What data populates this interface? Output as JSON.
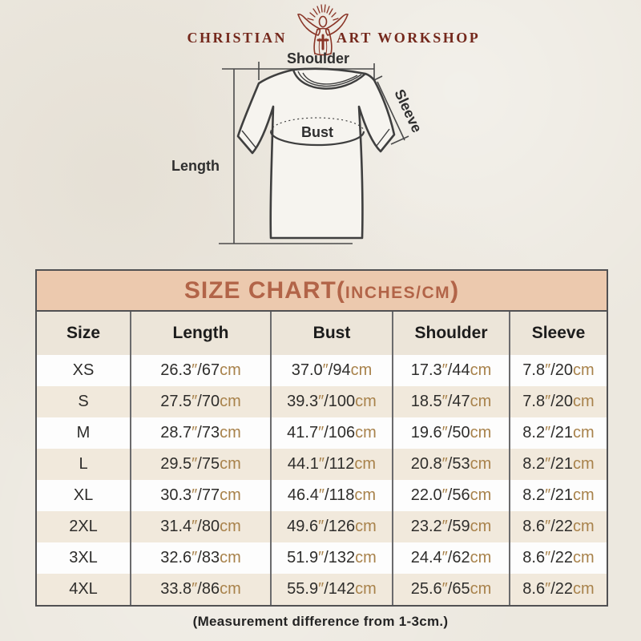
{
  "logo": {
    "left": "CHRISTIAN",
    "right": "ART WORKSHOP"
  },
  "diagram": {
    "shoulder": "Shoulder",
    "sleeve": "Sleeve",
    "bust": "Bust",
    "length": "Length"
  },
  "size_chart": {
    "title_main": "SIZE CHART(",
    "title_unit": "INCHES/CM",
    "title_close": ")",
    "units": {
      "inch_mark": "″",
      "separator": "/",
      "cm_label": "cm"
    },
    "columns": [
      "Size",
      "Length",
      "Bust",
      "Shoulder",
      "Sleeve"
    ],
    "rows": [
      {
        "size": "XS",
        "length": [
          "26.3",
          "67"
        ],
        "bust": [
          "37.0",
          "94"
        ],
        "shoulder": [
          "17.3",
          "44"
        ],
        "sleeve": [
          "7.8",
          "20"
        ]
      },
      {
        "size": "S",
        "length": [
          "27.5",
          "70"
        ],
        "bust": [
          "39.3",
          "100"
        ],
        "shoulder": [
          "18.5",
          "47"
        ],
        "sleeve": [
          "7.8",
          "20"
        ]
      },
      {
        "size": "M",
        "length": [
          "28.7",
          "73"
        ],
        "bust": [
          "41.7",
          "106"
        ],
        "shoulder": [
          "19.6",
          "50"
        ],
        "sleeve": [
          "8.2",
          "21"
        ]
      },
      {
        "size": "L",
        "length": [
          "29.5",
          "75"
        ],
        "bust": [
          "44.1",
          "112"
        ],
        "shoulder": [
          "20.8",
          "53"
        ],
        "sleeve": [
          "8.2",
          "21"
        ]
      },
      {
        "size": "XL",
        "length": [
          "30.3",
          "77"
        ],
        "bust": [
          "46.4",
          "118"
        ],
        "shoulder": [
          "22.0",
          "56"
        ],
        "sleeve": [
          "8.2",
          "21"
        ]
      },
      {
        "size": "2XL",
        "length": [
          "31.4",
          "80"
        ],
        "bust": [
          "49.6",
          "126"
        ],
        "shoulder": [
          "23.2",
          "59"
        ],
        "sleeve": [
          "8.6",
          "22"
        ]
      },
      {
        "size": "3XL",
        "length": [
          "32.6",
          "83"
        ],
        "bust": [
          "51.9",
          "132"
        ],
        "shoulder": [
          "24.4",
          "62"
        ],
        "sleeve": [
          "8.6",
          "22"
        ]
      },
      {
        "size": "4XL",
        "length": [
          "33.8",
          "86"
        ],
        "bust": [
          "55.9",
          "142"
        ],
        "shoulder": [
          "25.6",
          "65"
        ],
        "sleeve": [
          "8.6",
          "22"
        ]
      }
    ]
  },
  "footnote": "(Measurement difference from 1-3cm.)",
  "colors": {
    "page_background": "#ece8df",
    "title_bar_background": "#ecc9ae",
    "title_text": "#b26448",
    "unit_text": "#a8824b",
    "logo_maroon": "#8a3527",
    "row_beige": "#f1e9dc",
    "row_white": "#fdfdfd",
    "border_gray": "#515153"
  }
}
